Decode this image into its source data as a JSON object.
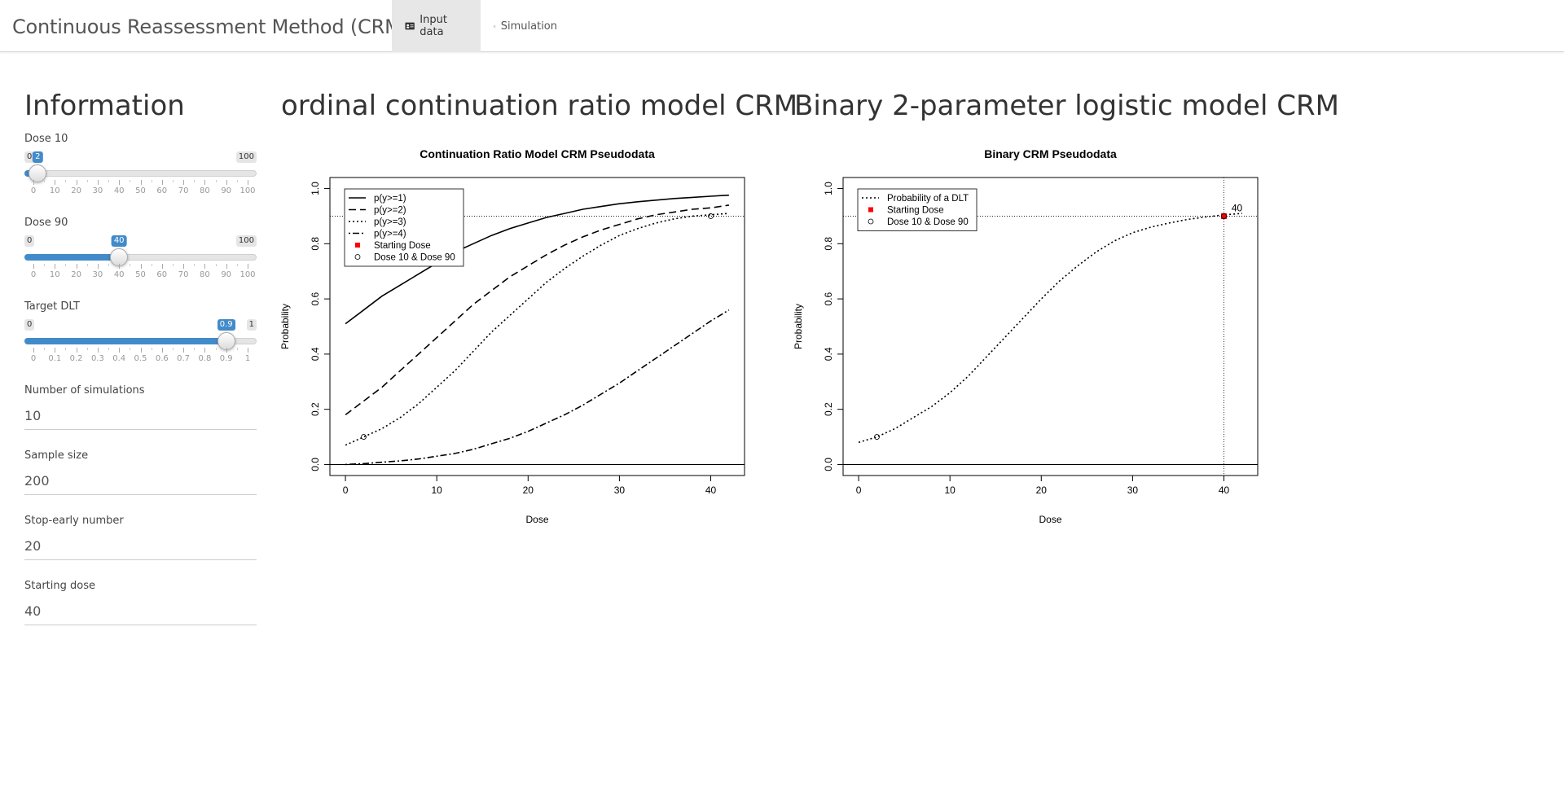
{
  "navbar": {
    "brand": "Continuous Reassessment Method (CRM)",
    "tabs": [
      {
        "label": "Input data",
        "icon": "id-card-icon",
        "active": true
      },
      {
        "label": "Simulation",
        "icon": "line-chart-icon",
        "active": false
      }
    ]
  },
  "sidebar": {
    "title": "Information",
    "sliders": [
      {
        "label": "Dose 10",
        "value": 2,
        "min": 0,
        "max": 100,
        "min_label": "0",
        "max_label": "100",
        "value_label": "2",
        "ticks": [
          "0",
          "10",
          "20",
          "30",
          "40",
          "50",
          "60",
          "70",
          "80",
          "90",
          "100"
        ]
      },
      {
        "label": "Dose 90",
        "value": 40,
        "min": 0,
        "max": 100,
        "min_label": "0",
        "max_label": "100",
        "value_label": "40",
        "ticks": [
          "0",
          "10",
          "20",
          "30",
          "40",
          "50",
          "60",
          "70",
          "80",
          "90",
          "100"
        ]
      },
      {
        "label": "Target DLT",
        "value": 0.9,
        "min": 0,
        "max": 1,
        "min_label": "0",
        "max_label": "1",
        "value_label": "0.9",
        "ticks": [
          "0",
          "0.1",
          "0.2",
          "0.3",
          "0.4",
          "0.5",
          "0.6",
          "0.7",
          "0.8",
          "0.9",
          "1"
        ]
      }
    ],
    "inputs": [
      {
        "label": "Number of simulations",
        "value": "10"
      },
      {
        "label": "Sample size",
        "value": "200"
      },
      {
        "label": "Stop-early number",
        "value": "20"
      },
      {
        "label": "Starting dose",
        "value": "40"
      }
    ]
  },
  "panels": {
    "left_title": "ordinal continuation ratio model CRM",
    "right_title": "Binary 2-parameter logistic model CRM"
  },
  "chart_data": [
    {
      "type": "line",
      "title": "Continuation Ratio Model CRM Pseudodata",
      "xlabel": "Dose",
      "ylabel": "Probability",
      "xlim": [
        -1.7,
        43.7
      ],
      "ylim": [
        -0.04,
        1.04
      ],
      "xticks": [
        "0",
        "10",
        "20",
        "30",
        "40"
      ],
      "yticks": [
        "0.0",
        "0.2",
        "0.4",
        "0.6",
        "0.8",
        "1.0"
      ],
      "hline": 0.9,
      "baseline": 0,
      "x": [
        0,
        2,
        4,
        6,
        8,
        10,
        12,
        14,
        16,
        18,
        20,
        22,
        24,
        26,
        28,
        30,
        32,
        34,
        36,
        38,
        40,
        42
      ],
      "series": [
        {
          "name": "p(y>=1)",
          "dash": "solid",
          "values": [
            0.51,
            0.56,
            0.61,
            0.65,
            0.69,
            0.73,
            0.77,
            0.8,
            0.83,
            0.855,
            0.875,
            0.895,
            0.91,
            0.925,
            0.935,
            0.945,
            0.952,
            0.958,
            0.964,
            0.968,
            0.972,
            0.976
          ]
        },
        {
          "name": "p(y>=2)",
          "dash": "dashed",
          "values": [
            0.18,
            0.23,
            0.28,
            0.34,
            0.4,
            0.46,
            0.52,
            0.58,
            0.63,
            0.68,
            0.72,
            0.76,
            0.795,
            0.825,
            0.85,
            0.87,
            0.89,
            0.905,
            0.915,
            0.925,
            0.93,
            0.94
          ]
        },
        {
          "name": "p(y>=3)",
          "dash": "dotted",
          "values": [
            0.07,
            0.1,
            0.13,
            0.17,
            0.22,
            0.28,
            0.34,
            0.41,
            0.48,
            0.54,
            0.6,
            0.66,
            0.71,
            0.755,
            0.795,
            0.83,
            0.855,
            0.875,
            0.89,
            0.9,
            0.905,
            0.91
          ]
        },
        {
          "name": "p(y>=4)",
          "dash": "dotdash",
          "values": [
            0.0,
            0.003,
            0.008,
            0.013,
            0.02,
            0.03,
            0.04,
            0.055,
            0.075,
            0.095,
            0.12,
            0.15,
            0.18,
            0.215,
            0.255,
            0.295,
            0.34,
            0.385,
            0.43,
            0.475,
            0.52,
            0.56
          ]
        }
      ],
      "markers": [
        {
          "name": "Dose 10 & Dose 90",
          "shape": "open-circle",
          "points": [
            [
              2,
              0.1
            ],
            [
              40,
              0.9
            ]
          ]
        }
      ],
      "legend": {
        "placement": "top-left",
        "entries": [
          "p(y>=1)",
          "p(y>=2)",
          "p(y>=3)",
          "p(y>=4)",
          "Starting Dose",
          "Dose 10 & Dose 90"
        ]
      },
      "starting_dose_color": "#ff0000"
    },
    {
      "type": "line",
      "title": "Binary CRM Pseudodata",
      "xlabel": "Dose",
      "ylabel": "Probability",
      "xlim": [
        -1.7,
        43.7
      ],
      "ylim": [
        -0.04,
        1.04
      ],
      "xticks": [
        "0",
        "10",
        "20",
        "30",
        "40"
      ],
      "yticks": [
        "0.0",
        "0.2",
        "0.4",
        "0.6",
        "0.8",
        "1.0"
      ],
      "hline": 0.9,
      "vline": 40,
      "baseline": 0,
      "x": [
        0,
        2,
        4,
        6,
        8,
        10,
        12,
        14,
        16,
        18,
        20,
        22,
        24,
        26,
        28,
        30,
        32,
        34,
        36,
        38,
        40,
        42
      ],
      "series": [
        {
          "name": "Probability of a DLT",
          "dash": "dotted",
          "values": [
            0.08,
            0.1,
            0.13,
            0.17,
            0.21,
            0.26,
            0.32,
            0.39,
            0.46,
            0.53,
            0.6,
            0.665,
            0.72,
            0.77,
            0.81,
            0.84,
            0.86,
            0.875,
            0.888,
            0.897,
            0.905,
            0.91
          ]
        }
      ],
      "markers": [
        {
          "name": "Starting Dose",
          "shape": "filled-square",
          "color": "#ff0000",
          "points": [
            [
              40,
              0.9
            ]
          ]
        },
        {
          "name": "Dose 10 & Dose 90",
          "shape": "open-circle",
          "points": [
            [
              2,
              0.1
            ],
            [
              40,
              0.9
            ]
          ]
        }
      ],
      "point_label": {
        "text": "40",
        "x": 40,
        "y": 0.9
      },
      "legend": {
        "placement": "top-left",
        "entries": [
          "Probability of a DLT",
          "Starting Dose",
          "Dose 10 & Dose 90"
        ]
      }
    }
  ]
}
